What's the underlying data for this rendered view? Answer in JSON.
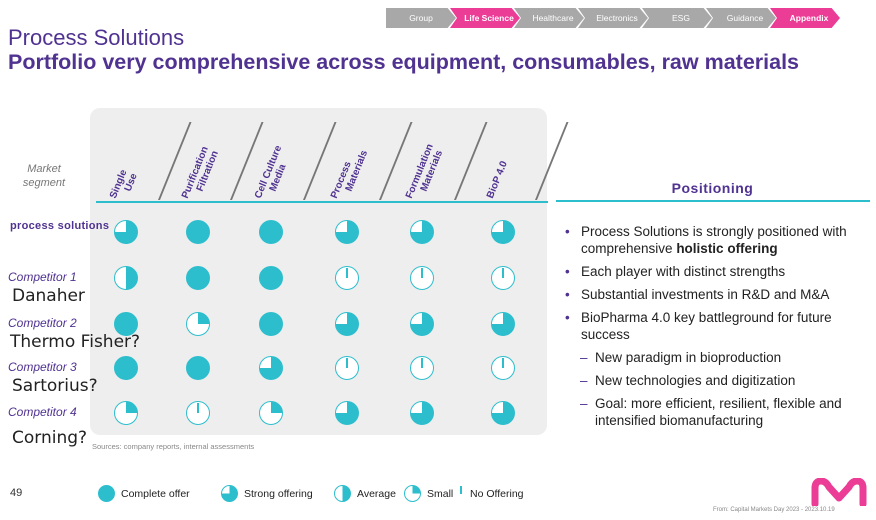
{
  "nav": [
    "Group",
    "Life Science",
    "Healthcare",
    "Electronics",
    "ESG",
    "Guidance",
    "Appendix"
  ],
  "title": "Process Solutions",
  "subtitle": "Portfolio very comprehensive across equipment, consumables, raw materials",
  "market_segment": "Market segment",
  "columns": [
    {
      "line1": "Single",
      "line2": "Use"
    },
    {
      "line1": "Purification",
      "line2": "Filtration"
    },
    {
      "line1": "Cell Culture",
      "line2": "Media"
    },
    {
      "line1": "Process",
      "line2": "Materials"
    },
    {
      "line1": "Formulation",
      "line2": "Materials"
    },
    {
      "line1": "BioP 4.0",
      "line2": ""
    }
  ],
  "rows": [
    {
      "label": "process solutions",
      "handwritten": "",
      "ratings": [
        0.75,
        1.0,
        1.0,
        0.75,
        0.75,
        0.75
      ]
    },
    {
      "label": "Competitor 1",
      "handwritten": "Danaher",
      "ratings": [
        0.5,
        1.0,
        1.0,
        0.0,
        0.0,
        0.0
      ]
    },
    {
      "label": "Competitor 2",
      "handwritten": "Thermo Fisher?",
      "ratings": [
        1.0,
        0.25,
        1.0,
        0.75,
        0.75,
        0.75
      ]
    },
    {
      "label": "Competitor 3",
      "handwritten": "Sartorius?",
      "ratings": [
        1.0,
        1.0,
        0.75,
        0.0,
        0.0,
        0.0
      ]
    },
    {
      "label": "Competitor 4",
      "handwritten": "Corning?",
      "ratings": [
        0.25,
        0.0,
        0.25,
        0.75,
        0.75,
        0.75
      ]
    }
  ],
  "sources": "Sources: company reports, internal assessments",
  "positioning": {
    "title": "Positioning",
    "bullets": [
      {
        "type": "b",
        "pre": "Process Solutions is strongly positioned with comprehensive ",
        "bold": "holistic offering",
        "post": ""
      },
      {
        "type": "b",
        "pre": "Each player with distinct strengths",
        "bold": "",
        "post": ""
      },
      {
        "type": "b",
        "pre": "Substantial investments in R&D and M&A",
        "bold": "",
        "post": ""
      },
      {
        "type": "b",
        "pre": "BioPharma 4.0 key battleground for future success",
        "bold": "",
        "post": ""
      },
      {
        "type": "s",
        "pre": "New paradigm in bioproduction",
        "bold": "",
        "post": ""
      },
      {
        "type": "s",
        "pre": "New technologies and digitization",
        "bold": "",
        "post": ""
      },
      {
        "type": "s",
        "pre": "Goal: more efficient, resilient, flexible and intensified biomanufacturing",
        "bold": "",
        "post": ""
      }
    ]
  },
  "legend": [
    {
      "label": "Complete offer",
      "level": 1.0
    },
    {
      "label": "Strong offering",
      "level": 0.75
    },
    {
      "label": "Average",
      "level": 0.5
    },
    {
      "label": "Small",
      "level": 0.25
    },
    {
      "label": "No Offering",
      "level": 0.0
    }
  ],
  "page_number": "49",
  "footer": "From: Capital Markets Day 2023 - 2023.10.19",
  "colors": {
    "purple": "#503291",
    "teal": "#2dbecd",
    "pink": "#eb3c96"
  }
}
